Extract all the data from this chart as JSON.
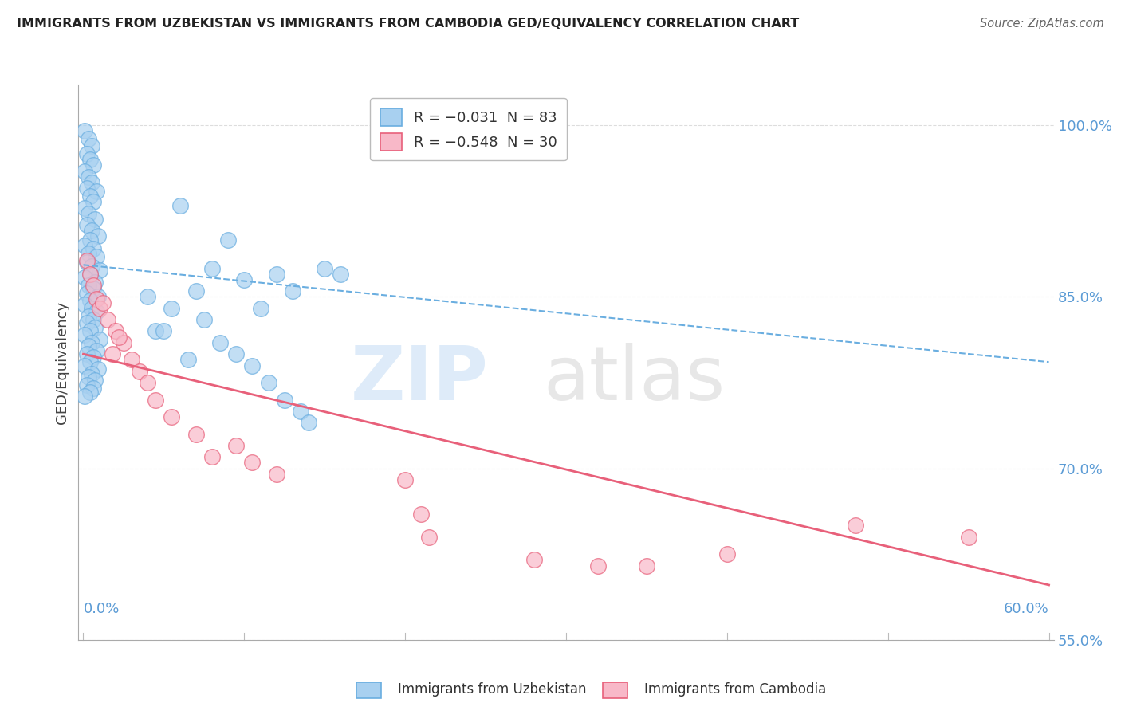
{
  "title": "IMMIGRANTS FROM UZBEKISTAN VS IMMIGRANTS FROM CAMBODIA GED/EQUIVALENCY CORRELATION CHART",
  "source": "Source: ZipAtlas.com",
  "ylabel": "GED/Equivalency",
  "legend1_label": "R = −0.031  N = 83",
  "legend2_label": "R = −0.548  N = 30",
  "series1_color": "#A8D0F0",
  "series2_color": "#F8B8C8",
  "line1_color": "#6aaee0",
  "line2_color": "#E8607A",
  "background_color": "#FFFFFF",
  "grid_color": "#DDDDDD",
  "ytick_vals": [
    1.0,
    0.85,
    0.7,
    0.55
  ],
  "ytick_labels": [
    "100.0%",
    "85.0%",
    "70.0%",
    "55.0%"
  ],
  "ylim": [
    0.595,
    1.035
  ],
  "xlim": [
    -0.003,
    0.603
  ],
  "line1_x": [
    0.0,
    0.6
  ],
  "line1_y": [
    0.878,
    0.793
  ],
  "line2_x": [
    0.0,
    0.6
  ],
  "line2_y": [
    0.8,
    0.598
  ],
  "series1": [
    [
      0.001,
      0.995
    ],
    [
      0.003,
      0.988
    ],
    [
      0.005,
      0.982
    ],
    [
      0.002,
      0.975
    ],
    [
      0.004,
      0.97
    ],
    [
      0.006,
      0.965
    ],
    [
      0.001,
      0.96
    ],
    [
      0.003,
      0.955
    ],
    [
      0.005,
      0.95
    ],
    [
      0.002,
      0.945
    ],
    [
      0.008,
      0.942
    ],
    [
      0.004,
      0.938
    ],
    [
      0.006,
      0.933
    ],
    [
      0.001,
      0.928
    ],
    [
      0.003,
      0.923
    ],
    [
      0.007,
      0.918
    ],
    [
      0.002,
      0.913
    ],
    [
      0.005,
      0.908
    ],
    [
      0.009,
      0.903
    ],
    [
      0.004,
      0.9
    ],
    [
      0.001,
      0.895
    ],
    [
      0.006,
      0.892
    ],
    [
      0.003,
      0.888
    ],
    [
      0.008,
      0.885
    ],
    [
      0.002,
      0.88
    ],
    [
      0.005,
      0.877
    ],
    [
      0.01,
      0.873
    ],
    [
      0.004,
      0.87
    ],
    [
      0.001,
      0.867
    ],
    [
      0.007,
      0.863
    ],
    [
      0.003,
      0.86
    ],
    [
      0.006,
      0.857
    ],
    [
      0.002,
      0.853
    ],
    [
      0.009,
      0.85
    ],
    [
      0.004,
      0.847
    ],
    [
      0.001,
      0.843
    ],
    [
      0.005,
      0.84
    ],
    [
      0.008,
      0.837
    ],
    [
      0.003,
      0.833
    ],
    [
      0.006,
      0.83
    ],
    [
      0.002,
      0.827
    ],
    [
      0.007,
      0.823
    ],
    [
      0.004,
      0.82
    ],
    [
      0.001,
      0.817
    ],
    [
      0.01,
      0.813
    ],
    [
      0.005,
      0.81
    ],
    [
      0.003,
      0.807
    ],
    [
      0.008,
      0.803
    ],
    [
      0.002,
      0.8
    ],
    [
      0.006,
      0.797
    ],
    [
      0.004,
      0.793
    ],
    [
      0.001,
      0.79
    ],
    [
      0.009,
      0.787
    ],
    [
      0.005,
      0.783
    ],
    [
      0.003,
      0.78
    ],
    [
      0.007,
      0.777
    ],
    [
      0.002,
      0.773
    ],
    [
      0.006,
      0.77
    ],
    [
      0.004,
      0.767
    ],
    [
      0.001,
      0.763
    ],
    [
      0.06,
      0.93
    ],
    [
      0.09,
      0.9
    ],
    [
      0.08,
      0.875
    ],
    [
      0.12,
      0.87
    ],
    [
      0.07,
      0.855
    ],
    [
      0.1,
      0.865
    ],
    [
      0.04,
      0.85
    ],
    [
      0.055,
      0.84
    ],
    [
      0.11,
      0.84
    ],
    [
      0.075,
      0.83
    ],
    [
      0.045,
      0.82
    ],
    [
      0.13,
      0.855
    ],
    [
      0.15,
      0.875
    ],
    [
      0.16,
      0.87
    ],
    [
      0.05,
      0.82
    ],
    [
      0.085,
      0.81
    ],
    [
      0.095,
      0.8
    ],
    [
      0.065,
      0.795
    ],
    [
      0.105,
      0.79
    ],
    [
      0.115,
      0.775
    ],
    [
      0.125,
      0.76
    ],
    [
      0.135,
      0.75
    ],
    [
      0.14,
      0.74
    ]
  ],
  "series2": [
    [
      0.002,
      0.882
    ],
    [
      0.004,
      0.87
    ],
    [
      0.006,
      0.86
    ],
    [
      0.008,
      0.848
    ],
    [
      0.01,
      0.84
    ],
    [
      0.015,
      0.83
    ],
    [
      0.02,
      0.82
    ],
    [
      0.025,
      0.81
    ],
    [
      0.018,
      0.8
    ],
    [
      0.03,
      0.795
    ],
    [
      0.022,
      0.815
    ],
    [
      0.012,
      0.845
    ],
    [
      0.035,
      0.785
    ],
    [
      0.04,
      0.775
    ],
    [
      0.045,
      0.76
    ],
    [
      0.055,
      0.745
    ],
    [
      0.07,
      0.73
    ],
    [
      0.08,
      0.71
    ],
    [
      0.095,
      0.72
    ],
    [
      0.105,
      0.705
    ],
    [
      0.12,
      0.695
    ],
    [
      0.2,
      0.69
    ],
    [
      0.21,
      0.66
    ],
    [
      0.215,
      0.64
    ],
    [
      0.28,
      0.62
    ],
    [
      0.32,
      0.615
    ],
    [
      0.35,
      0.615
    ],
    [
      0.4,
      0.625
    ],
    [
      0.48,
      0.65
    ],
    [
      0.55,
      0.64
    ]
  ]
}
